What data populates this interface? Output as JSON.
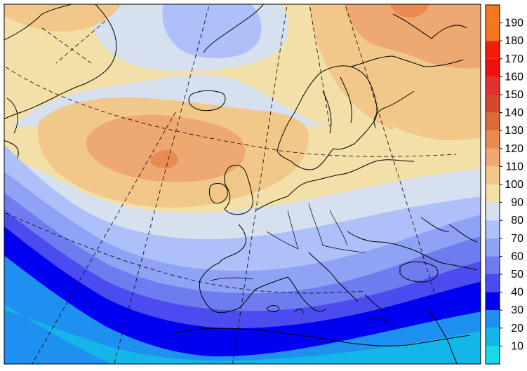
{
  "legend": {
    "labels": [
      "10",
      "20",
      "30",
      "40",
      "50",
      "60",
      "70",
      "80",
      "90",
      "100",
      "110",
      "120",
      "130",
      "140",
      "150",
      "160",
      "170",
      "180",
      "190"
    ],
    "colors": [
      "#19d9e8",
      "#14b5e8",
      "#1e90f0",
      "#0000f0",
      "#4b4bf0",
      "#6e7cf0",
      "#8fa2f6",
      "#aec0fa",
      "#d6e0ee",
      "#f3e0a8",
      "#f2c78a",
      "#eea872",
      "#e98a50",
      "#dc6a3a",
      "#d04a30",
      "#e23030",
      "#ee1010",
      "#f01e08",
      "#f57820"
    ]
  },
  "map": {
    "region": "Europe / North Atlantic",
    "style": "filled contours with coastlines and dashed graticule"
  }
}
